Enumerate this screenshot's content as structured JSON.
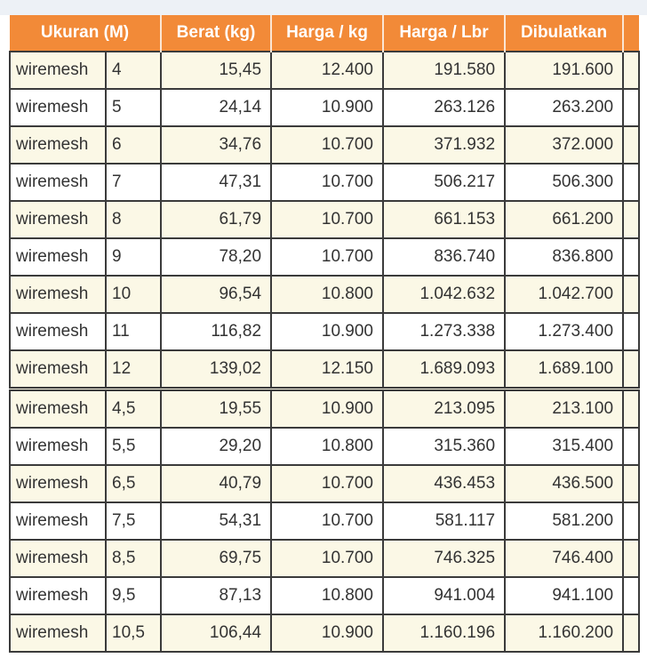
{
  "colors": {
    "header_bg": "#f28a38",
    "header_text": "#ffffff",
    "row_alt_bg": "#fbf8e6",
    "row_bg": "#ffffff",
    "border": "#3b3b3b",
    "text": "#333333",
    "page_bg": "#edf1f6"
  },
  "table": {
    "headers": {
      "ukuran": "Ukuran (M)",
      "berat": "Berat (kg)",
      "harga_kg": "Harga / kg",
      "harga_lbr": "Harga / Lbr",
      "dibulatkan": "Dibulatkan"
    },
    "rows": [
      {
        "name": "wiremesh",
        "size": "4",
        "berat": "15,45",
        "harga_kg": "12.400",
        "harga_lbr": "191.580",
        "dibulatkan": "191.600"
      },
      {
        "name": "wiremesh",
        "size": "5",
        "berat": "24,14",
        "harga_kg": "10.900",
        "harga_lbr": "263.126",
        "dibulatkan": "263.200"
      },
      {
        "name": "wiremesh",
        "size": "6",
        "berat": "34,76",
        "harga_kg": "10.700",
        "harga_lbr": "371.932",
        "dibulatkan": "372.000"
      },
      {
        "name": "wiremesh",
        "size": "7",
        "berat": "47,31",
        "harga_kg": "10.700",
        "harga_lbr": "506.217",
        "dibulatkan": "506.300"
      },
      {
        "name": "wiremesh",
        "size": "8",
        "berat": "61,79",
        "harga_kg": "10.700",
        "harga_lbr": "661.153",
        "dibulatkan": "661.200"
      },
      {
        "name": "wiremesh",
        "size": "9",
        "berat": "78,20",
        "harga_kg": "10.700",
        "harga_lbr": "836.740",
        "dibulatkan": "836.800"
      },
      {
        "name": "wiremesh",
        "size": "10",
        "berat": "96,54",
        "harga_kg": "10.800",
        "harga_lbr": "1.042.632",
        "dibulatkan": "1.042.700"
      },
      {
        "name": "wiremesh",
        "size": "11",
        "berat": "116,82",
        "harga_kg": "10.900",
        "harga_lbr": "1.273.338",
        "dibulatkan": "1.273.400"
      },
      {
        "name": "wiremesh",
        "size": "12",
        "berat": "139,02",
        "harga_kg": "12.150",
        "harga_lbr": "1.689.093",
        "dibulatkan": "1.689.100"
      },
      {
        "name": "wiremesh",
        "size": "4,5",
        "berat": "19,55",
        "harga_kg": "10.900",
        "harga_lbr": "213.095",
        "dibulatkan": "213.100"
      },
      {
        "name": "wiremesh",
        "size": "5,5",
        "berat": "29,20",
        "harga_kg": "10.800",
        "harga_lbr": "315.360",
        "dibulatkan": "315.400"
      },
      {
        "name": "wiremesh",
        "size": "6,5",
        "berat": "40,79",
        "harga_kg": "10.700",
        "harga_lbr": "436.453",
        "dibulatkan": "436.500"
      },
      {
        "name": "wiremesh",
        "size": "7,5",
        "berat": "54,31",
        "harga_kg": "10.700",
        "harga_lbr": "581.117",
        "dibulatkan": "581.200"
      },
      {
        "name": "wiremesh",
        "size": "8,5",
        "berat": "69,75",
        "harga_kg": "10.700",
        "harga_lbr": "746.325",
        "dibulatkan": "746.400"
      },
      {
        "name": "wiremesh",
        "size": "9,5",
        "berat": "87,13",
        "harga_kg": "10.800",
        "harga_lbr": "941.004",
        "dibulatkan": "941.100"
      },
      {
        "name": "wiremesh",
        "size": "10,5",
        "berat": "106,44",
        "harga_kg": "10.900",
        "harga_lbr": "1.160.196",
        "dibulatkan": "1.160.200"
      }
    ]
  }
}
